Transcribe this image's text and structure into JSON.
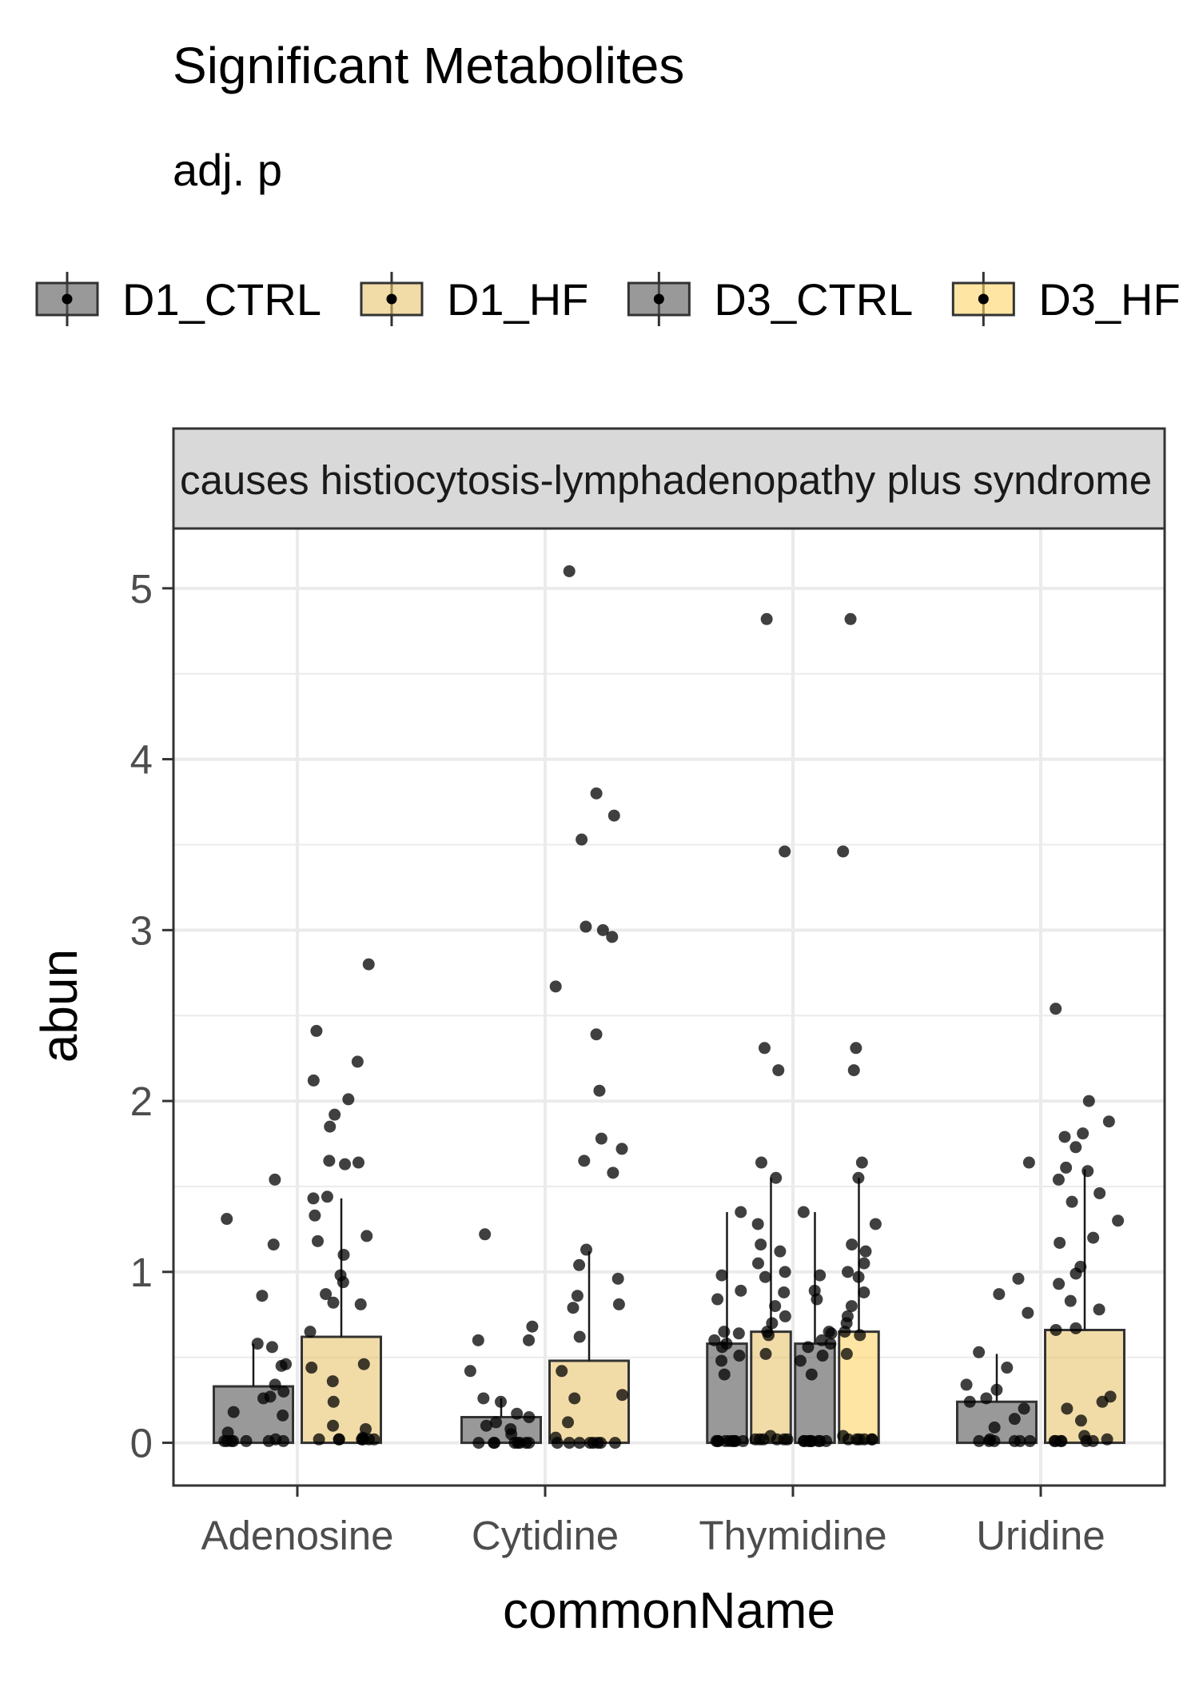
{
  "chart_data": {
    "type": "bar",
    "title": "Significant Metabolites",
    "subtitle": "adj. p",
    "facet_label": "causes histiocytosis-lymphadenopathy plus syndrome",
    "xlabel": "commonName",
    "ylabel": "abun",
    "ylim": [
      -0.25,
      5.35
    ],
    "y_ticks": [
      0,
      1,
      2,
      3,
      4,
      5
    ],
    "grid": true,
    "legend_position": "top",
    "categories": [
      "Adenosine",
      "Cytidine",
      "Thymidine",
      "Uridine"
    ],
    "series": [
      {
        "name": "D1_CTRL",
        "color": "#555555",
        "values": [
          0.33,
          0.15,
          0.58,
          0.24
        ],
        "error_upper": [
          0.58,
          0.26,
          1.35,
          0.52
        ],
        "points": [
          [
            1.54,
            1.31,
            1.16,
            0.86,
            0.56,
            0.58,
            0.46,
            0.45,
            0.34,
            0.3,
            0.27,
            0.26,
            0.18,
            0.16,
            0.06,
            0.02,
            0.01,
            0.01,
            0.01,
            0.01,
            0.01,
            0.01,
            0.01
          ],
          [
            1.22,
            0.68,
            0.6,
            0.6,
            0.42,
            0.26,
            0.24,
            0.17,
            0.15,
            0.12,
            0.1,
            0.08,
            0.05,
            0,
            0,
            0,
            0,
            0,
            0,
            0,
            0
          ],
          [
            1.35,
            0.98,
            0.89,
            0.84,
            0.65,
            0.64,
            0.6,
            0.58,
            0.56,
            0.51,
            0.48,
            0.4,
            0.01,
            0.01,
            0.01,
            0.01,
            0.01,
            0.01,
            0.01,
            0.01,
            0.01
          ],
          [
            1.64,
            0.96,
            0.87,
            0.76,
            0.53,
            0.44,
            0.34,
            0.31,
            0.26,
            0.24,
            0.2,
            0.14,
            0.09,
            0.02,
            0.01,
            0.01,
            0.01,
            0.01,
            0.01,
            0.01
          ]
        ]
      },
      {
        "name": "D1_HF",
        "color": "#E8C46E",
        "values": [
          0.62,
          0.48,
          0.65,
          0.66
        ],
        "error_upper": [
          1.43,
          1.12,
          1.55,
          1.6
        ],
        "points": [
          [
            2.8,
            2.41,
            2.23,
            2.12,
            2.01,
            1.92,
            1.85,
            1.65,
            1.64,
            1.63,
            1.44,
            1.43,
            1.33,
            1.21,
            1.18,
            1.1,
            0.98,
            0.94,
            0.87,
            0.82,
            0.81,
            0.65,
            0.46,
            0.44,
            0.36,
            0.24,
            0.1,
            0.08,
            0.03,
            0.02,
            0.02,
            0.02,
            0.02,
            0.02,
            0.02,
            0.02
          ],
          [
            5.1,
            3.8,
            3.67,
            3.53,
            3.02,
            3.0,
            2.96,
            2.67,
            2.39,
            2.06,
            1.78,
            1.72,
            1.65,
            1.58,
            1.13,
            1.04,
            0.96,
            0.86,
            0.81,
            0.79,
            0.62,
            0.42,
            0.28,
            0.26,
            0.12,
            0.03,
            0,
            0,
            0,
            0,
            0,
            0,
            0,
            0
          ],
          [
            4.82,
            3.46,
            2.31,
            2.18,
            1.64,
            1.55,
            1.28,
            1.16,
            1.12,
            1.05,
            1.0,
            0.97,
            0.88,
            0.8,
            0.74,
            0.7,
            0.65,
            0.63,
            0.52,
            0.04,
            0.02,
            0.02,
            0.02,
            0.02,
            0.02,
            0.02
          ],
          [
            2.54,
            2.0,
            1.88,
            1.81,
            1.79,
            1.73,
            1.61,
            1.59,
            1.54,
            1.46,
            1.41,
            1.3,
            1.2,
            1.17,
            1.03,
            0.99,
            0.93,
            0.83,
            0.78,
            0.67,
            0.66,
            0.27,
            0.24,
            0.2,
            0.13,
            0.04,
            0.02,
            0.01,
            0.01,
            0.01,
            0.01,
            0.01,
            0.01
          ]
        ]
      },
      {
        "name": "D3_CTRL",
        "color": "#555555",
        "values": [
          null,
          null,
          0.58,
          null
        ],
        "error_upper": [
          null,
          null,
          1.35,
          null
        ],
        "points": [
          [],
          [],
          [
            1.35,
            0.98,
            0.89,
            0.84,
            0.65,
            0.64,
            0.6,
            0.58,
            0.56,
            0.51,
            0.48,
            0.4,
            0.01,
            0.01,
            0.01,
            0.01,
            0.01,
            0.01,
            0.01,
            0.01,
            0.01
          ],
          []
        ]
      },
      {
        "name": "D3_HF",
        "color": "#FFD466",
        "values": [
          null,
          null,
          0.65,
          null
        ],
        "error_upper": [
          null,
          null,
          1.55,
          null
        ],
        "points": [
          [],
          [],
          [
            4.82,
            3.46,
            2.31,
            2.18,
            1.64,
            1.55,
            1.28,
            1.16,
            1.12,
            1.05,
            1.0,
            0.97,
            0.88,
            0.8,
            0.74,
            0.7,
            0.65,
            0.63,
            0.52,
            0.04,
            0.02,
            0.02,
            0.02,
            0.02,
            0.02,
            0.02
          ],
          []
        ]
      }
    ]
  }
}
